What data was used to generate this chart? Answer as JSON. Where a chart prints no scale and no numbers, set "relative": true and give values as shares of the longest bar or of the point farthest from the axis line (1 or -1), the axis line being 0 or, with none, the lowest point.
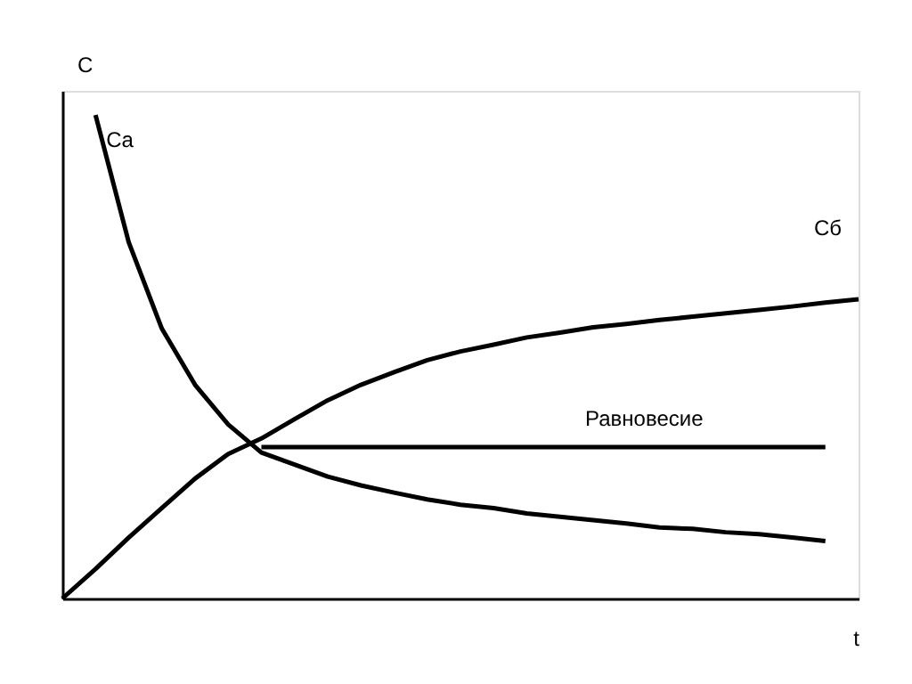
{
  "chart_data": {
    "type": "line",
    "relative": true,
    "xlabel": "t",
    "ylabel": "C",
    "grid": false,
    "marker": "none",
    "line_style": "solid",
    "categories": [
      null,
      null,
      null,
      null,
      null,
      null,
      null,
      null,
      null,
      null,
      null,
      null,
      null,
      null,
      null,
      null,
      null,
      null,
      null,
      null,
      null,
      null,
      null,
      null,
      null
    ],
    "series": [
      {
        "name": "Ca",
        "color": "#000000",
        "values": [
          null,
          1,
          0.737,
          0.558,
          0.442,
          0.36,
          0.302,
          0.277,
          0.252,
          0.234,
          0.219,
          0.205,
          0.194,
          0.187,
          0.176,
          0.169,
          0.162,
          0.155,
          0.147,
          0.144,
          0.137,
          0.133,
          0.126,
          0.119,
          null
        ]
      },
      {
        "name": "Cб",
        "color": "#000000",
        "values": [
          0,
          0.061,
          0.126,
          0.187,
          0.248,
          0.299,
          0.331,
          0.371,
          0.41,
          0.442,
          0.468,
          0.493,
          0.511,
          0.525,
          0.54,
          0.55,
          0.561,
          0.568,
          0.576,
          0.583,
          0.59,
          0.597,
          0.604,
          0.612,
          0.619
        ]
      },
      {
        "name": "Равновесие",
        "color": "#000000",
        "values": [
          null,
          null,
          null,
          null,
          null,
          null,
          0.313,
          0.313,
          0.313,
          0.313,
          0.313,
          0.313,
          0.313,
          0.313,
          0.313,
          0.313,
          0.313,
          0.313,
          0.313,
          0.313,
          0.313,
          0.313,
          0.313,
          0.313,
          null
        ]
      }
    ]
  }
}
